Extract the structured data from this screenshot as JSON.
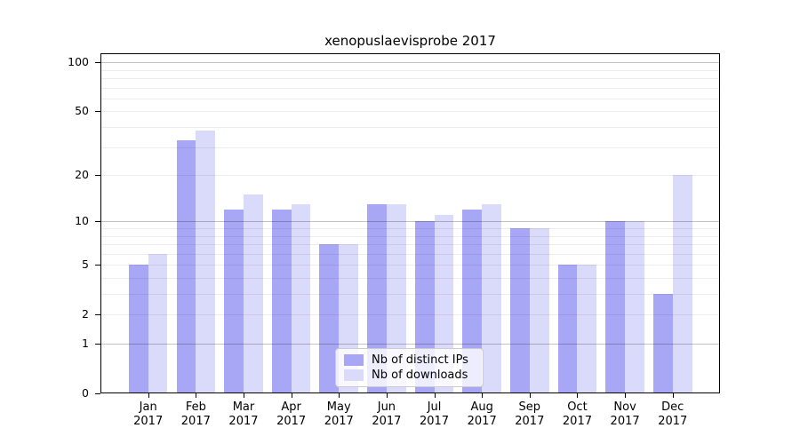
{
  "title": "xenopuslaevisprobe 2017",
  "chart_data": {
    "type": "bar",
    "title": "xenopuslaevisprobe 2017",
    "categories": [
      "Jan",
      "Feb",
      "Mar",
      "Apr",
      "May",
      "Jun",
      "Jul",
      "Aug",
      "Sep",
      "Oct",
      "Nov",
      "Dec"
    ],
    "category_year": "2017",
    "series": [
      {
        "name": "Nb of distinct IPs",
        "color": "#a7a7f5",
        "values": [
          5,
          33,
          12,
          12,
          7,
          13,
          10,
          12,
          9,
          5,
          10,
          3
        ]
      },
      {
        "name": "Nb of downloads",
        "color": "#dadafa",
        "values": [
          6,
          38,
          15,
          13,
          7,
          13,
          11,
          13,
          9,
          5,
          10,
          20
        ]
      }
    ],
    "xlabel": "",
    "ylabel": "",
    "y_scale": "log1p",
    "y_ticks": [
      0,
      1,
      2,
      5,
      10,
      20,
      50,
      100
    ],
    "y_major_gridlines": [
      1,
      10,
      100
    ],
    "y_minor_gridlines": [
      2,
      3,
      4,
      5,
      6,
      7,
      8,
      9,
      20,
      30,
      40,
      50,
      60,
      70,
      80,
      90
    ],
    "ylim": [
      0,
      115
    ],
    "grid": true,
    "legend_position": "bottom-center"
  },
  "colors": {
    "bar_distinct_ips": "#a7a7f5",
    "bar_downloads": "#dadafa",
    "axis": "#000000",
    "grid_major": "#c2c2c2",
    "grid_minor": "#ececec",
    "legend_border": "#cccccc",
    "background": "#ffffff"
  }
}
